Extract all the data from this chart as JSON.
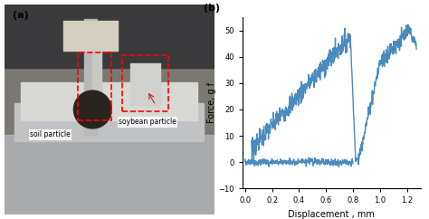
{
  "title_left": "(a)",
  "title_right": "(b)",
  "xlabel": "Displacement , mm",
  "ylabel": "Force, g f",
  "xlim": [
    -0.02,
    1.3
  ],
  "ylim": [
    -10,
    55
  ],
  "xticks": [
    0.0,
    0.2,
    0.4,
    0.6,
    0.8,
    1.0,
    1.2
  ],
  "yticks": [
    -10,
    0,
    10,
    20,
    30,
    40,
    50
  ],
  "line_color": "#4a8bbf",
  "line_width": 1.0,
  "background_color": "#ffffff",
  "photo_bg": "#b0a898",
  "photo_mid": "#8a9090",
  "label_soil": "soil particle",
  "label_soybean": "soybean particle"
}
